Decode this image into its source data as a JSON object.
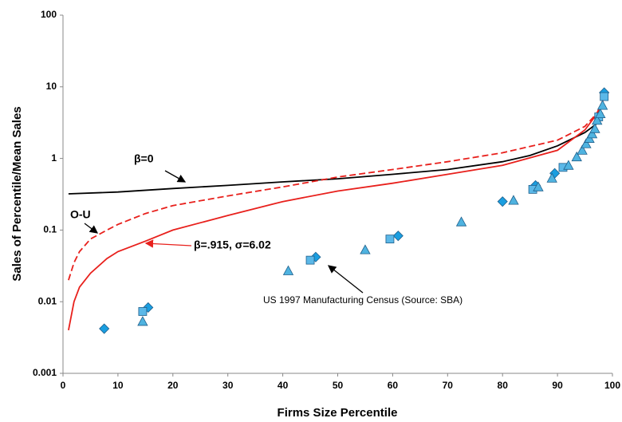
{
  "chart_data": {
    "type": "line",
    "xlabel": "Firms Size Percentile",
    "ylabel": "Sales of Percentile/Mean Sales",
    "xlim": [
      0,
      100
    ],
    "xticks": [
      0,
      10,
      20,
      30,
      40,
      50,
      60,
      70,
      80,
      90,
      100
    ],
    "ylim": [
      0.001,
      100
    ],
    "yticks": [
      0.001,
      0.01,
      0.1,
      1,
      10,
      100
    ],
    "ylog": true,
    "grid": false,
    "annotations": [
      "β=0",
      "O-U",
      "β=.915, σ=6.02",
      "US  1997 Manufacturing  Census (Source: SBA)"
    ],
    "series": [
      {
        "name": "β=0",
        "kind": "line",
        "color": "#000000",
        "dash": false,
        "x": [
          1,
          10,
          20,
          30,
          40,
          50,
          60,
          70,
          80,
          85,
          90,
          95,
          97,
          98
        ],
        "values": [
          0.32,
          0.34,
          0.38,
          0.42,
          0.47,
          0.52,
          0.6,
          0.7,
          0.9,
          1.1,
          1.5,
          2.3,
          3.0,
          3.5
        ]
      },
      {
        "name": "O-U",
        "kind": "line",
        "color": "#e8201c",
        "dash": true,
        "x": [
          1,
          2,
          3,
          5,
          8,
          10,
          15,
          20,
          30,
          40,
          50,
          60,
          70,
          80,
          90,
          95,
          98
        ],
        "values": [
          0.02,
          0.035,
          0.05,
          0.075,
          0.1,
          0.12,
          0.17,
          0.22,
          0.3,
          0.4,
          0.55,
          0.7,
          0.9,
          1.2,
          1.8,
          2.8,
          5
        ]
      },
      {
        "name": "β=.915, σ=6.02",
        "kind": "line",
        "color": "#e8201c",
        "dash": false,
        "x": [
          1,
          2,
          3,
          5,
          8,
          10,
          15,
          20,
          30,
          40,
          50,
          60,
          70,
          80,
          90,
          95,
          97,
          98.5
        ],
        "values": [
          0.004,
          0.01,
          0.016,
          0.025,
          0.04,
          0.05,
          0.07,
          0.1,
          0.16,
          0.25,
          0.35,
          0.45,
          0.6,
          0.8,
          1.3,
          2.5,
          4,
          7
        ]
      },
      {
        "kind": "scatter",
        "marker": "diamond",
        "color": "#1a9ee0",
        "x": [
          7.5,
          15.5,
          46,
          61,
          80,
          86,
          89.5,
          98.5
        ],
        "values": [
          0.0042,
          0.0083,
          0.042,
          0.083,
          0.25,
          0.42,
          0.62,
          8.3
        ]
      },
      {
        "kind": "scatter",
        "marker": "square",
        "color": "#5bb8e8",
        "x": [
          14.5,
          45,
          59.5,
          85.5,
          91,
          97.5,
          98.5
        ],
        "values": [
          0.0073,
          0.038,
          0.075,
          0.37,
          0.75,
          3.8,
          7.3
        ]
      },
      {
        "kind": "scatter",
        "marker": "triangle",
        "color": "#4fb3e0",
        "x": [
          14.5,
          41,
          55,
          72.5,
          82,
          86.5,
          89,
          92,
          93.5,
          94.5,
          95.2,
          95.8,
          96.3,
          96.8,
          97.2,
          97.8,
          98.2
        ],
        "values": [
          0.0053,
          0.027,
          0.053,
          0.13,
          0.26,
          0.4,
          0.53,
          0.8,
          1.05,
          1.3,
          1.6,
          1.9,
          2.2,
          2.6,
          3.4,
          4.2,
          5.5
        ]
      }
    ]
  }
}
